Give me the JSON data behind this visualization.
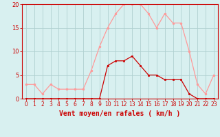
{
  "x": [
    0,
    1,
    2,
    3,
    4,
    5,
    6,
    7,
    8,
    9,
    10,
    11,
    12,
    13,
    14,
    15,
    16,
    17,
    18,
    19,
    20,
    21,
    22,
    23
  ],
  "vent_moyen": [
    0,
    0,
    0,
    0,
    0,
    0,
    0,
    0,
    0,
    0,
    7,
    8,
    8,
    9,
    7,
    5,
    5,
    4,
    4,
    4,
    1,
    0,
    0,
    0
  ],
  "rafales": [
    3,
    3,
    1,
    3,
    2,
    2,
    2,
    2,
    6,
    11,
    15,
    18,
    20,
    20,
    20,
    18,
    15,
    18,
    16,
    16,
    10,
    3,
    1,
    5
  ],
  "line_color_moyen": "#cc0000",
  "line_color_rafales": "#ff9999",
  "bg_color": "#d8f0f0",
  "grid_color": "#b0d0d0",
  "axis_color": "#cc0000",
  "xlabel": "Vent moyen/en rafales ( km/h )",
  "ylim": [
    0,
    20
  ],
  "xlim": [
    -0.5,
    23.5
  ],
  "yticks": [
    0,
    5,
    10,
    15,
    20
  ],
  "xticks": [
    0,
    1,
    2,
    3,
    4,
    5,
    6,
    7,
    8,
    9,
    10,
    11,
    12,
    13,
    14,
    15,
    16,
    17,
    18,
    19,
    20,
    21,
    22,
    23
  ]
}
